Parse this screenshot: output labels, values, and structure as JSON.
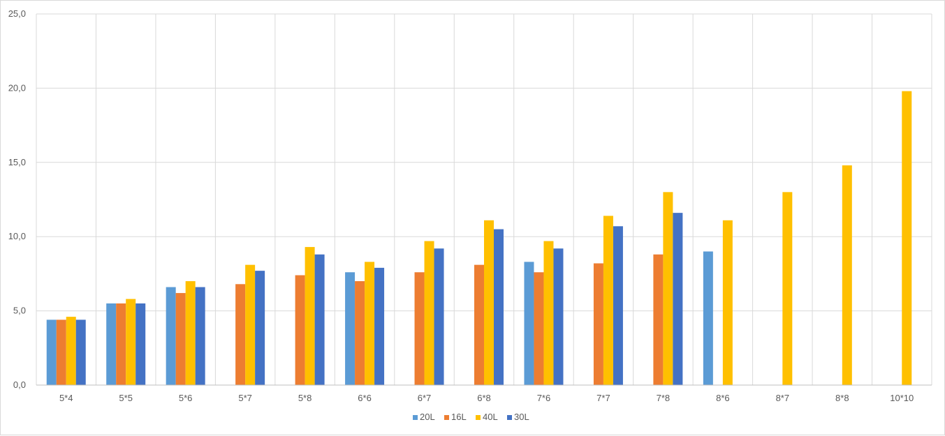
{
  "chart_data": {
    "type": "bar",
    "title": "",
    "xlabel": "",
    "ylabel": "",
    "ylim": [
      0,
      25
    ],
    "y_ticks": [
      "0,0",
      "5,0",
      "10,0",
      "15,0",
      "20,0",
      "25,0"
    ],
    "grid": true,
    "legend_position": "bottom",
    "categories": [
      "5*4",
      "5*5",
      "5*6",
      "5*7",
      "5*8",
      "6*6",
      "6*7",
      "6*8",
      "7*6",
      "7*7",
      "7*8",
      "8*6",
      "8*7",
      "8*8",
      "10*10"
    ],
    "series": [
      {
        "name": "20L",
        "color": "#5b9bd5",
        "values": [
          4.4,
          5.5,
          6.6,
          null,
          null,
          7.6,
          null,
          null,
          8.3,
          null,
          null,
          9.0,
          null,
          null,
          null
        ]
      },
      {
        "name": "16L",
        "color": "#ed7d31",
        "values": [
          4.4,
          5.5,
          6.2,
          6.8,
          7.4,
          7.0,
          7.6,
          8.1,
          7.6,
          8.2,
          8.8,
          null,
          null,
          null,
          null
        ]
      },
      {
        "name": "40L",
        "color": "#ffc000",
        "values": [
          4.6,
          5.8,
          7.0,
          8.1,
          9.3,
          8.3,
          9.7,
          11.1,
          9.7,
          11.4,
          13.0,
          11.1,
          13.0,
          14.8,
          19.8
        ]
      },
      {
        "name": "30L",
        "color": "#4472c4",
        "values": [
          4.4,
          5.5,
          6.6,
          7.7,
          8.8,
          7.9,
          9.2,
          10.5,
          9.2,
          10.7,
          11.6,
          null,
          null,
          null,
          null
        ]
      }
    ]
  }
}
